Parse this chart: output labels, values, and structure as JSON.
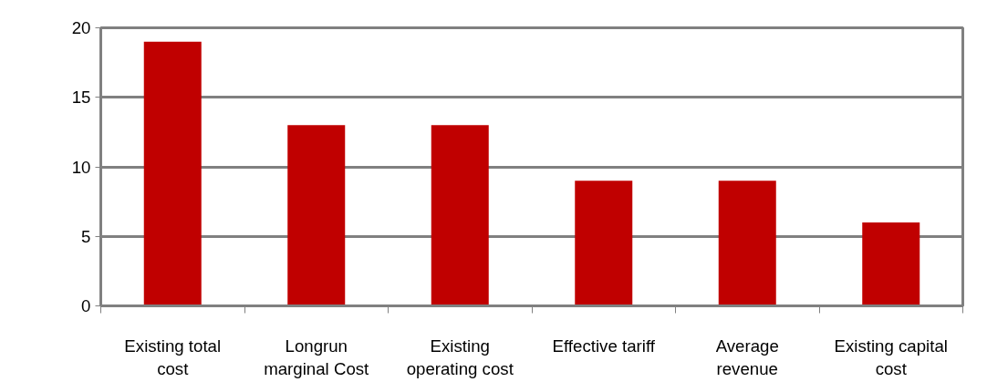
{
  "chart_data": {
    "type": "bar",
    "categories": [
      "Existing total\ncost",
      "Longrun\nmarginal Cost",
      "Existing\noperating cost",
      "Effective tariff",
      "Average\nrevenue",
      "Existing capital\ncost"
    ],
    "values": [
      19,
      13,
      13,
      9,
      9,
      6
    ],
    "color": "#c00000",
    "ylim": [
      0,
      20
    ],
    "yticks": [
      0,
      5,
      10,
      15,
      20
    ],
    "grid": "y"
  }
}
